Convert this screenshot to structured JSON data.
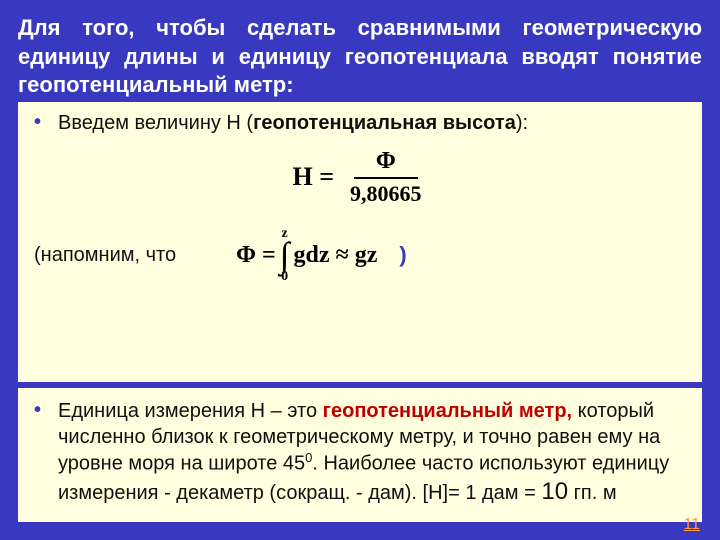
{
  "heading": "Для того, чтобы сделать сравнимыми геометрическую единицу длины и единицу геопотенциала вводят понятие геопотенциальный метр:",
  "bullet1": {
    "prefix": "Введем величину H (",
    "term": "геопотенциальная высота",
    "suffix": "):"
  },
  "formula1": {
    "left": "H =",
    "num": "Φ",
    "den": "9,80665"
  },
  "recall": {
    "label": "(напомним, что",
    "paren": ")"
  },
  "formula2": {
    "lhs": "Φ =",
    "top": "z",
    "bot": "0",
    "body": "gdz ≈ gz"
  },
  "bullet2": {
    "p1": "Единица измерения H – это ",
    "term": "геопотенциальный метр",
    "comma": ", ",
    "p2a": "который численно близок к геометрическому метру, и точно равен ему на уровне моря  на широте 45",
    "sup": "0",
    "p2b": ". Наиболее часто используют единицу измерения - декаметр (сокращ. - дам). [H]= 1 дам = ",
    "ten": "10",
    "p2c": " гп. м"
  },
  "page": "11",
  "colors": {
    "bg": "#3838c0",
    "panel": "#ffffe0",
    "red": "#c00000",
    "pagenum": "#ff9933"
  }
}
